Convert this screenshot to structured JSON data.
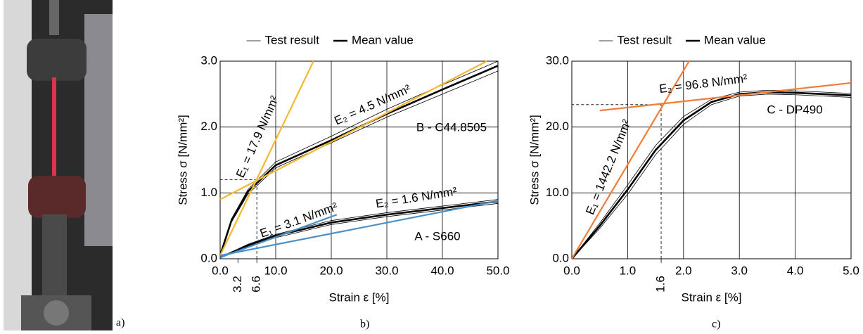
{
  "panel_labels": [
    "a)",
    "b)",
    "c)"
  ],
  "chart_data": [
    {
      "type": "line",
      "legend": true,
      "xlabel": "Strain ε [%]",
      "ylabel": "Stress σ [N/mm²]",
      "xlim": [
        0,
        50
      ],
      "ylim": [
        0,
        3
      ],
      "xticks": [
        {
          "value": 0,
          "label": "0.0"
        },
        {
          "value": 10,
          "label": "10.0"
        },
        {
          "value": 20,
          "label": "20.0"
        },
        {
          "value": 30,
          "label": "30.0"
        },
        {
          "value": 40,
          "label": "40.0"
        },
        {
          "value": 50,
          "label": "50.0"
        }
      ],
      "yticks": [
        {
          "value": 0,
          "label": "0.0"
        },
        {
          "value": 1,
          "label": "1.0"
        },
        {
          "value": 2,
          "label": "2.0"
        },
        {
          "value": 3,
          "label": "3.0"
        }
      ],
      "grid": true,
      "x_markers": [
        3.2,
        6.6
      ],
      "reference_lines": [
        {
          "x": 6.6,
          "y": 1.2
        }
      ],
      "annotations": [
        "E₁ = 17.9 N/mm²",
        "E₂ = 4.5 N/mm²",
        "B - C44.8505",
        "E₁ = 3.1 N/mm²",
        "E₂ = 1.6 N/mm²",
        "A - S660"
      ],
      "series": [
        {
          "name": "Test result",
          "color": "#000000",
          "x": [
            0,
            2,
            5,
            10,
            20,
            30,
            40,
            50
          ],
          "values": [
            0.05,
            0.55,
            0.98,
            1.38,
            1.76,
            2.15,
            2.5,
            2.85
          ]
        },
        {
          "name": "Test result",
          "color": "#000000",
          "x": [
            0,
            2,
            5,
            10,
            20,
            30,
            40,
            50
          ],
          "values": [
            0.05,
            0.6,
            1.05,
            1.47,
            1.86,
            2.27,
            2.64,
            3.0
          ]
        },
        {
          "name": "Mean value",
          "color": "#000000",
          "x": [
            0,
            2,
            5,
            10,
            20,
            30,
            40,
            50
          ],
          "values": [
            0.05,
            0.57,
            1.02,
            1.42,
            1.8,
            2.2,
            2.57,
            2.93
          ]
        },
        {
          "name": "Test result",
          "color": "#000000",
          "x": [
            0,
            5,
            10,
            20,
            30,
            40,
            50
          ],
          "values": [
            0.02,
            0.18,
            0.32,
            0.52,
            0.64,
            0.74,
            0.84
          ]
        },
        {
          "name": "Test result",
          "color": "#000000",
          "x": [
            0,
            5,
            10,
            20,
            30,
            40,
            50
          ],
          "values": [
            0.02,
            0.22,
            0.37,
            0.58,
            0.7,
            0.8,
            0.9
          ]
        },
        {
          "name": "Mean value",
          "color": "#000000",
          "x": [
            0,
            5,
            10,
            20,
            30,
            40,
            50
          ],
          "values": [
            0.02,
            0.2,
            0.35,
            0.55,
            0.67,
            0.77,
            0.87
          ]
        },
        {
          "color": "#f5b82e",
          "x": [
            0,
            16.8
          ],
          "values": [
            0.05,
            3.0
          ]
        },
        {
          "color": "#f5b82e",
          "x": [
            0,
            48
          ],
          "values": [
            0.9,
            3.0
          ]
        },
        {
          "color": "#4a90c8",
          "x": [
            0,
            21
          ],
          "values": [
            0.02,
            0.67
          ]
        },
        {
          "color": "#4a90c8",
          "x": [
            0,
            50
          ],
          "values": [
            0.05,
            0.88
          ]
        }
      ]
    },
    {
      "type": "line",
      "legend": true,
      "xlabel": "Strain ε [%]",
      "ylabel": "Stress σ [N/mm²]",
      "xlim": [
        0,
        5
      ],
      "ylim": [
        0,
        30
      ],
      "xticks": [
        {
          "value": 0,
          "label": "0.0"
        },
        {
          "value": 1,
          "label": "1.0"
        },
        {
          "value": 2,
          "label": "2.0"
        },
        {
          "value": 3,
          "label": "3.0"
        },
        {
          "value": 4,
          "label": "4.0"
        },
        {
          "value": 5,
          "label": "5.0"
        }
      ],
      "yticks": [
        {
          "value": 0,
          "label": "0.0"
        },
        {
          "value": 10,
          "label": "10.0"
        },
        {
          "value": 20,
          "label": "20.0"
        },
        {
          "value": 30,
          "label": "30.0"
        }
      ],
      "grid": true,
      "x_markers": [
        1.6
      ],
      "reference_lines": [
        {
          "x": 1.6,
          "y": 23.4
        }
      ],
      "annotations": [
        "E₁ = 1442.2 N/mm²",
        "E₂ = 96.8 N/mm²",
        "C - DP490"
      ],
      "series": [
        {
          "name": "Test result",
          "color": "#000000",
          "x": [
            0,
            0.5,
            1,
            1.5,
            2,
            2.5,
            3,
            3.5,
            4,
            4.5,
            5
          ],
          "values": [
            0,
            4.6,
            9.8,
            15.8,
            20.4,
            23.4,
            24.7,
            25.0,
            24.9,
            24.7,
            24.5
          ]
        },
        {
          "name": "Test result",
          "color": "#000000",
          "x": [
            0,
            0.5,
            1,
            1.5,
            2,
            2.5,
            3,
            3.5,
            4,
            4.5,
            5
          ],
          "values": [
            0,
            5.4,
            11.2,
            17.2,
            21.6,
            24.2,
            25.3,
            25.6,
            25.5,
            25.3,
            25.1
          ]
        },
        {
          "name": "Mean value",
          "color": "#000000",
          "x": [
            0,
            0.5,
            1,
            1.5,
            2,
            2.5,
            3,
            3.5,
            4,
            4.5,
            5
          ],
          "values": [
            0,
            5.0,
            10.5,
            16.5,
            21.0,
            23.8,
            25.0,
            25.3,
            25.2,
            25.0,
            24.8
          ]
        },
        {
          "color": "#ee7d3b",
          "x": [
            0,
            2.1
          ],
          "values": [
            0,
            30
          ]
        },
        {
          "color": "#ee7d3b",
          "x": [
            0.5,
            5
          ],
          "values": [
            22.5,
            26.7
          ]
        }
      ]
    }
  ]
}
